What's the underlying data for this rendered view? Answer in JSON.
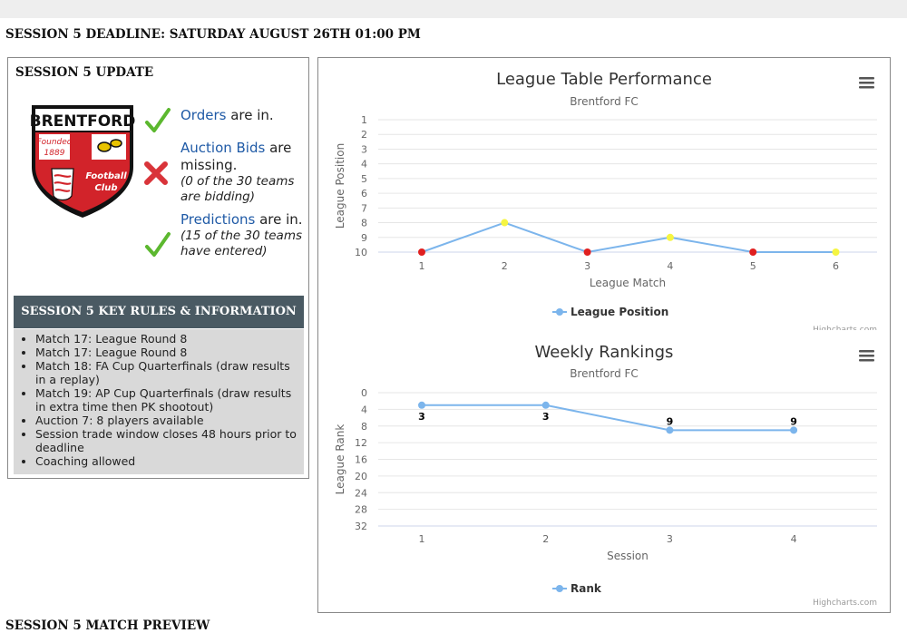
{
  "page": {
    "deadline": "SESSION 5 DEADLINE: SATURDAY AUGUST 26TH 01:00 PM",
    "bottom_title": "SESSION 5 MATCH PREVIEW"
  },
  "update": {
    "title": "SESSION 5 UPDATE",
    "team_logo": {
      "name": "BRENTFORD",
      "founded_line1": "Founded",
      "founded_line2": "1889",
      "club_line1": "Football",
      "club_line2": "Club",
      "colors": {
        "red": "#d2232a",
        "black": "#111111",
        "white": "#ffffff",
        "gold": "#e8c300"
      }
    },
    "statuses": [
      {
        "icon": "check-icon",
        "link": "Orders",
        "text": " are in.",
        "detail": ""
      },
      {
        "icon": "cross-icon",
        "link": "Auction Bids",
        "text": " are missing.",
        "detail": "(0 of the 30 teams are bidding)"
      },
      {
        "icon": "check-icon",
        "link": "Predictions",
        "text": " are in.",
        "detail": "(15 of the 30 teams have entered)"
      }
    ],
    "icon_colors": {
      "check": "#5cb82f",
      "cross": "#d9343a",
      "link": "#1f5aa6"
    }
  },
  "rules": {
    "header": "SESSION 5 KEY RULES & INFORMATION",
    "header_bg": "#4a5a63",
    "items": [
      "Match 17: League Round 8",
      "Match 17: League Round 8",
      "Match 18: FA Cup Quarterfinals (draw results in a replay)",
      "Match 19: AP Cup Quarterfinals (draw results in extra time then PK shootout)",
      "Auction 7: 8 players available",
      "Session trade window closes 48 hours prior to deadline",
      "Coaching allowed"
    ]
  },
  "chart_data": [
    {
      "type": "line",
      "title": "League Table Performance",
      "subtitle": "Brentford FC",
      "xlabel": "League Match",
      "ylabel": "League Position",
      "categories": [
        "1",
        "2",
        "3",
        "4",
        "5",
        "6"
      ],
      "yticks": [
        1,
        2,
        3,
        4,
        5,
        6,
        7,
        8,
        9,
        10
      ],
      "ylim": [
        1,
        10
      ],
      "y_reversed": true,
      "grid": true,
      "legend": "bottom-center",
      "credits": "Highcharts.com",
      "series": [
        {
          "name": "League Position",
          "values": [
            10,
            8,
            10,
            9,
            10,
            10
          ],
          "color": "#7cb5ec",
          "marker_colors": [
            "#e02020",
            "#f5f542",
            "#e02020",
            "#f5f542",
            "#e02020",
            "#f5f542"
          ]
        }
      ]
    },
    {
      "type": "line",
      "title": "Weekly Rankings",
      "subtitle": "Brentford FC",
      "xlabel": "Session",
      "ylabel": "League Rank",
      "categories": [
        "1",
        "2",
        "3",
        "4"
      ],
      "yticks": [
        0,
        4,
        8,
        12,
        16,
        20,
        24,
        28,
        32
      ],
      "ylim": [
        0,
        32
      ],
      "y_reversed": true,
      "grid": true,
      "legend": "bottom-center",
      "credits": "Highcharts.com",
      "series": [
        {
          "name": "Rank",
          "values": [
            3,
            3,
            9,
            9
          ],
          "data_labels": [
            "3",
            "3",
            "9",
            "9"
          ],
          "color": "#7cb5ec"
        }
      ]
    }
  ]
}
